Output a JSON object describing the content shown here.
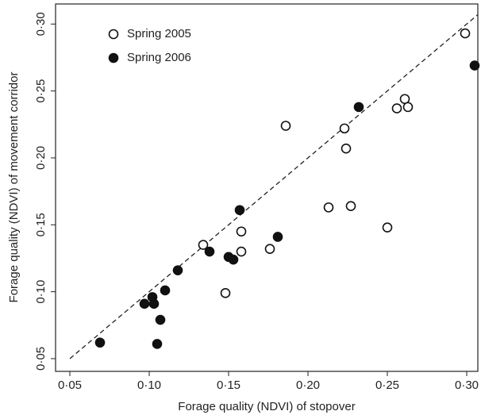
{
  "chart_data": {
    "type": "scatter",
    "xlabel": "Forage quality (NDVI) of stopover",
    "ylabel": "Forage quality (NDVI) of movement corridor",
    "xlim": [
      0.041,
      0.307
    ],
    "ylim": [
      0.0405,
      0.315
    ],
    "xticks": [
      {
        "value": 0.05,
        "label": "0·05"
      },
      {
        "value": 0.1,
        "label": "0·10"
      },
      {
        "value": 0.15,
        "label": "0·15"
      },
      {
        "value": 0.2,
        "label": "0·20"
      },
      {
        "value": 0.25,
        "label": "0·25"
      },
      {
        "value": 0.3,
        "label": "0·30"
      }
    ],
    "yticks": [
      {
        "value": 0.05,
        "label": "0·05"
      },
      {
        "value": 0.1,
        "label": "0·10"
      },
      {
        "value": 0.15,
        "label": "0·15"
      },
      {
        "value": 0.2,
        "label": "0·20"
      },
      {
        "value": 0.25,
        "label": "0·25"
      },
      {
        "value": 0.3,
        "label": "0·30"
      }
    ],
    "legend": "upper left",
    "series": [
      {
        "name": "Spring 2005",
        "color": "#111111",
        "marker": "open",
        "x": [
          0.134,
          0.148,
          0.158,
          0.158,
          0.176,
          0.186,
          0.213,
          0.223,
          0.224,
          0.227,
          0.25,
          0.256,
          0.261,
          0.263,
          0.299
        ],
        "values": [
          0.135,
          0.099,
          0.145,
          0.13,
          0.132,
          0.224,
          0.163,
          0.222,
          0.207,
          0.164,
          0.148,
          0.237,
          0.244,
          0.238,
          0.293
        ]
      },
      {
        "name": "Spring 2006",
        "color": "#111111",
        "marker": "filled",
        "x": [
          0.069,
          0.097,
          0.102,
          0.103,
          0.105,
          0.107,
          0.11,
          0.118,
          0.138,
          0.15,
          0.153,
          0.157,
          0.181,
          0.232,
          0.305
        ],
        "values": [
          0.062,
          0.091,
          0.096,
          0.091,
          0.061,
          0.079,
          0.101,
          0.116,
          0.13,
          0.126,
          0.124,
          0.161,
          0.141,
          0.238,
          0.269
        ]
      }
    ]
  }
}
